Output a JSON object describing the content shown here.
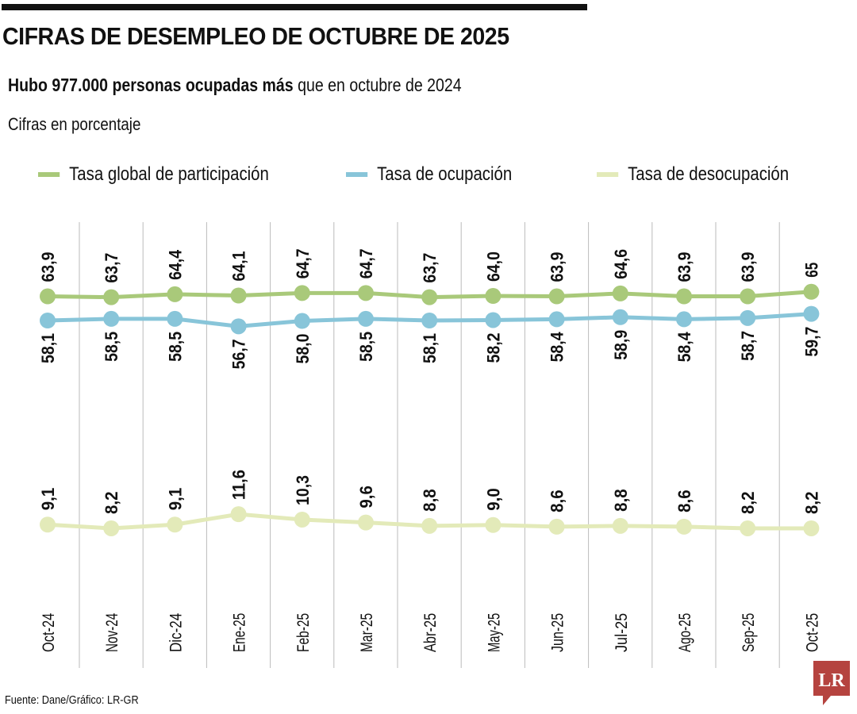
{
  "title": "CIFRAS DE DESEMPLEO DE OCTUBRE DE 2025",
  "subtitle_bold": "Hubo 977.000 personas ocupadas más",
  "subtitle_rest": " que en octubre de 2024",
  "units": "Cifras en porcentaje",
  "source": "Fuente: Dane/Gráfico: LR-GR",
  "logo": "LR",
  "colors": {
    "participacion": "#a9c97a",
    "ocupacion": "#88c5d9",
    "desocupacion": "#e3eab9",
    "grid": "#bbbbbb",
    "logo": "#b5433f"
  },
  "chart_data": {
    "type": "line",
    "categories": [
      "Oct-24",
      "Nov-24",
      "Dic-24",
      "Ene-25",
      "Feb-25",
      "Mar-25",
      "Abr-25",
      "May-25",
      "Jun-25",
      "Jul-25",
      "Ago-25",
      "Sep-25",
      "Oct-25"
    ],
    "series": [
      {
        "name": "Tasa global de participación",
        "values": [
          63.9,
          63.7,
          64.4,
          64.1,
          64.7,
          64.7,
          63.7,
          64.0,
          63.9,
          64.6,
          63.9,
          63.9,
          65
        ],
        "labels": [
          "63,9",
          "63,7",
          "64,4",
          "64,1",
          "64,7",
          "64,7",
          "63,7",
          "64,0",
          "63,9",
          "64,6",
          "63,9",
          "63,9",
          "65"
        ]
      },
      {
        "name": "Tasa de ocupación",
        "values": [
          58.1,
          58.5,
          58.5,
          56.7,
          58.0,
          58.5,
          58.1,
          58.2,
          58.4,
          58.9,
          58.4,
          58.7,
          59.7
        ],
        "labels": [
          "58,1",
          "58,5",
          "58,5",
          "56,7",
          "58,0",
          "58,5",
          "58,1",
          "58,2",
          "58,4",
          "58,9",
          "58,4",
          "58,7",
          "59,7"
        ]
      },
      {
        "name": "Tasa de desocupación",
        "values": [
          9.1,
          8.2,
          9.1,
          11.6,
          10.3,
          9.6,
          8.8,
          9.0,
          8.6,
          8.8,
          8.6,
          8.2,
          8.2
        ],
        "labels": [
          "9,1",
          "8,2",
          "9,1",
          "11,6",
          "10,3",
          "9,6",
          "8,8",
          "9,0",
          "8,6",
          "8,8",
          "8,6",
          "8,2",
          "8,2"
        ]
      }
    ],
    "legend": "top",
    "grid": "vertical"
  }
}
